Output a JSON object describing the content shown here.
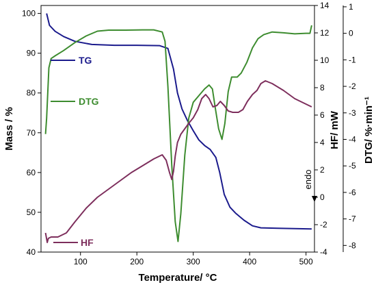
{
  "chart_data": {
    "type": "line",
    "xlabel": "Temperature/ °C",
    "x_axis": {
      "range": [
        30,
        515
      ],
      "ticks": [
        100,
        200,
        300,
        400,
        500
      ]
    },
    "axes": {
      "mass": {
        "label": "Mass / %",
        "range": [
          40,
          102
        ],
        "ticks": [
          40,
          50,
          60,
          70,
          80,
          90,
          100
        ]
      },
      "hf": {
        "label": "HF/ mW",
        "range": [
          -4,
          14
        ],
        "ticks": [
          -4,
          -2,
          0,
          2,
          4,
          6,
          8,
          10,
          12,
          14
        ]
      },
      "dtg": {
        "label": "DTG/ %·min⁻¹",
        "range": [
          -8.25,
          1.05
        ],
        "ticks": [
          -8,
          -7,
          -6,
          -5,
          -4,
          -3,
          -2,
          -1,
          0,
          1
        ]
      }
    },
    "annotation": "endo",
    "series": [
      {
        "name": "TG",
        "axis": "mass",
        "color": "#1a1a8c",
        "points": [
          [
            40,
            100
          ],
          [
            45,
            97.0
          ],
          [
            55,
            95.5
          ],
          [
            70,
            94.2
          ],
          [
            90,
            93.0
          ],
          [
            120,
            92.2
          ],
          [
            160,
            92.0
          ],
          [
            200,
            92.0
          ],
          [
            240,
            91.9
          ],
          [
            255,
            91.2
          ],
          [
            265,
            86
          ],
          [
            272,
            80
          ],
          [
            280,
            76
          ],
          [
            290,
            73
          ],
          [
            300,
            70.5
          ],
          [
            310,
            68.2
          ],
          [
            320,
            66.8
          ],
          [
            330,
            65.8
          ],
          [
            340,
            63.8
          ],
          [
            347,
            60
          ],
          [
            355,
            54.5
          ],
          [
            365,
            51.3
          ],
          [
            375,
            49.8
          ],
          [
            390,
            48.0
          ],
          [
            405,
            46.6
          ],
          [
            420,
            46.1
          ],
          [
            450,
            46.0
          ],
          [
            480,
            45.9
          ],
          [
            510,
            45.8
          ]
        ]
      },
      {
        "name": "DTG",
        "axis": "dtg",
        "color": "#3d8c2f",
        "points": [
          [
            38,
            -3.8
          ],
          [
            40,
            -3.2
          ],
          [
            44,
            -1.3
          ],
          [
            48,
            -0.95
          ],
          [
            55,
            -0.85
          ],
          [
            70,
            -0.65
          ],
          [
            90,
            -0.35
          ],
          [
            110,
            -0.1
          ],
          [
            130,
            0.08
          ],
          [
            150,
            0.12
          ],
          [
            180,
            0.12
          ],
          [
            210,
            0.13
          ],
          [
            230,
            0.13
          ],
          [
            245,
            0.05
          ],
          [
            250,
            -0.3
          ],
          [
            255,
            -2.0
          ],
          [
            262,
            -5.0
          ],
          [
            268,
            -7.1
          ],
          [
            273,
            -7.85
          ],
          [
            278,
            -6.8
          ],
          [
            285,
            -4.6
          ],
          [
            292,
            -3.2
          ],
          [
            300,
            -2.6
          ],
          [
            310,
            -2.35
          ],
          [
            320,
            -2.1
          ],
          [
            328,
            -1.95
          ],
          [
            334,
            -2.1
          ],
          [
            339,
            -2.8
          ],
          [
            345,
            -3.6
          ],
          [
            351,
            -4.0
          ],
          [
            356,
            -3.4
          ],
          [
            362,
            -2.2
          ],
          [
            368,
            -1.65
          ],
          [
            378,
            -1.65
          ],
          [
            385,
            -1.5
          ],
          [
            395,
            -1.1
          ],
          [
            405,
            -0.55
          ],
          [
            415,
            -0.2
          ],
          [
            425,
            -0.05
          ],
          [
            440,
            0.05
          ],
          [
            460,
            0.02
          ],
          [
            480,
            -0.02
          ],
          [
            500,
            0.0
          ],
          [
            507,
            0.0
          ],
          [
            510,
            0.3
          ]
        ]
      },
      {
        "name": "HF",
        "axis": "hf",
        "color": "#7d2e5c",
        "points": [
          [
            38,
            -2.6
          ],
          [
            41,
            -3.3
          ],
          [
            43,
            -3.0
          ],
          [
            48,
            -2.9
          ],
          [
            60,
            -2.9
          ],
          [
            75,
            -2.6
          ],
          [
            90,
            -1.8
          ],
          [
            110,
            -0.8
          ],
          [
            130,
            0.0
          ],
          [
            150,
            0.6
          ],
          [
            170,
            1.2
          ],
          [
            190,
            1.8
          ],
          [
            210,
            2.3
          ],
          [
            230,
            2.8
          ],
          [
            245,
            3.1
          ],
          [
            252,
            2.7
          ],
          [
            258,
            1.8
          ],
          [
            262,
            1.3
          ],
          [
            265,
            1.9
          ],
          [
            268,
            3.0
          ],
          [
            272,
            4.0
          ],
          [
            278,
            4.6
          ],
          [
            285,
            5.0
          ],
          [
            292,
            5.4
          ],
          [
            300,
            5.8
          ],
          [
            308,
            6.4
          ],
          [
            315,
            7.2
          ],
          [
            322,
            7.5
          ],
          [
            328,
            7.2
          ],
          [
            335,
            6.6
          ],
          [
            342,
            6.7
          ],
          [
            348,
            7.0
          ],
          [
            355,
            6.7
          ],
          [
            362,
            6.3
          ],
          [
            370,
            6.2
          ],
          [
            380,
            6.2
          ],
          [
            388,
            6.4
          ],
          [
            396,
            7.0
          ],
          [
            405,
            7.5
          ],
          [
            413,
            7.8
          ],
          [
            420,
            8.3
          ],
          [
            428,
            8.5
          ],
          [
            440,
            8.3
          ],
          [
            460,
            7.8
          ],
          [
            480,
            7.2
          ],
          [
            500,
            6.8
          ],
          [
            510,
            6.6
          ]
        ]
      }
    ]
  }
}
